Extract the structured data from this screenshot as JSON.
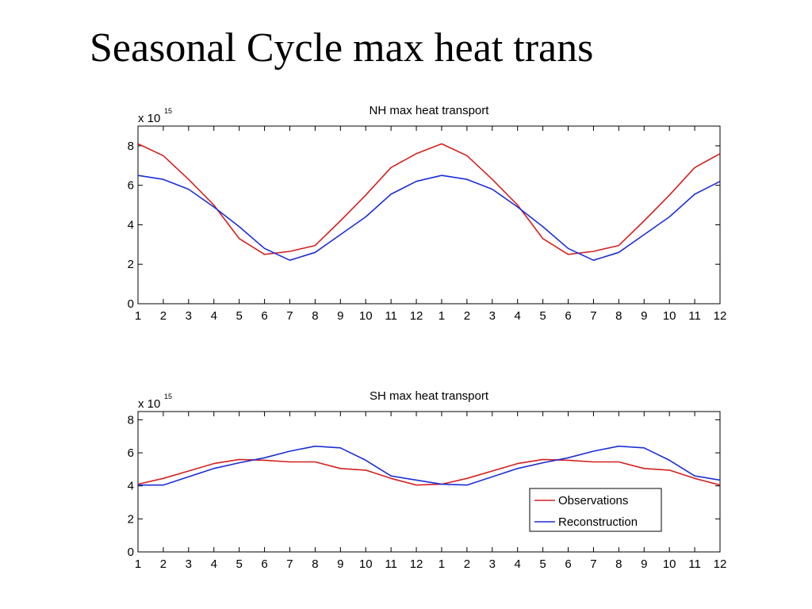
{
  "slide": {
    "title": "Seasonal Cycle max heat trans"
  },
  "colors": {
    "observations": "#d42020",
    "reconstruction": "#1c2ed6",
    "axis": "#000000",
    "background": "#ffffff"
  },
  "chart_data": [
    {
      "type": "line",
      "title": "NH max heat transport",
      "xlabel": "",
      "ylabel": "",
      "scale_exponent_label": "x 10",
      "scale_exponent": "15",
      "categories": [
        "1",
        "2",
        "3",
        "4",
        "5",
        "6",
        "7",
        "8",
        "9",
        "10",
        "11",
        "12",
        "1",
        "2",
        "3",
        "4",
        "5",
        "6",
        "7",
        "8",
        "9",
        "10",
        "11",
        "12"
      ],
      "ylim": [
        0,
        9
      ],
      "yticks": [
        0,
        2,
        4,
        6,
        8
      ],
      "grid": false,
      "legend": null,
      "series": [
        {
          "name": "Observations",
          "color_key": "observations",
          "values": [
            8.1,
            7.5,
            6.3,
            5.0,
            3.3,
            2.5,
            2.65,
            2.95,
            4.2,
            5.5,
            6.9,
            7.6,
            8.1,
            7.5,
            6.3,
            5.0,
            3.3,
            2.5,
            2.65,
            2.95,
            4.2,
            5.5,
            6.9,
            7.6
          ]
        },
        {
          "name": "Reconstruction",
          "color_key": "reconstruction",
          "values": [
            6.5,
            6.3,
            5.8,
            4.9,
            3.9,
            2.8,
            2.2,
            2.6,
            3.5,
            4.4,
            5.55,
            6.2,
            6.5,
            6.3,
            5.8,
            4.9,
            3.9,
            2.8,
            2.2,
            2.6,
            3.5,
            4.4,
            5.55,
            6.2
          ]
        }
      ]
    },
    {
      "type": "line",
      "title": "SH max heat transport",
      "xlabel": "",
      "ylabel": "",
      "scale_exponent_label": "x 10",
      "scale_exponent": "15",
      "categories": [
        "1",
        "2",
        "3",
        "4",
        "5",
        "6",
        "7",
        "8",
        "9",
        "10",
        "11",
        "12",
        "1",
        "2",
        "3",
        "4",
        "5",
        "6",
        "7",
        "8",
        "9",
        "10",
        "11",
        "12"
      ],
      "ylim": [
        0,
        8.5
      ],
      "yticks": [
        0,
        2,
        4,
        6,
        8
      ],
      "grid": false,
      "legend": {
        "position": "bottom-right",
        "entries": [
          "Observations",
          "Reconstruction"
        ]
      },
      "series": [
        {
          "name": "Observations",
          "color_key": "observations",
          "values": [
            4.1,
            4.45,
            4.9,
            5.35,
            5.6,
            5.55,
            5.45,
            5.45,
            5.05,
            4.95,
            4.45,
            4.05,
            4.1,
            4.45,
            4.9,
            5.35,
            5.6,
            5.55,
            5.45,
            5.45,
            5.05,
            4.95,
            4.45,
            4.05
          ]
        },
        {
          "name": "Reconstruction",
          "color_key": "reconstruction",
          "values": [
            4.05,
            4.05,
            4.55,
            5.05,
            5.4,
            5.7,
            6.1,
            6.4,
            6.3,
            5.55,
            4.6,
            4.35,
            4.1,
            4.05,
            4.55,
            5.05,
            5.4,
            5.7,
            6.1,
            6.4,
            6.3,
            5.55,
            4.6,
            4.35
          ]
        }
      ]
    }
  ]
}
